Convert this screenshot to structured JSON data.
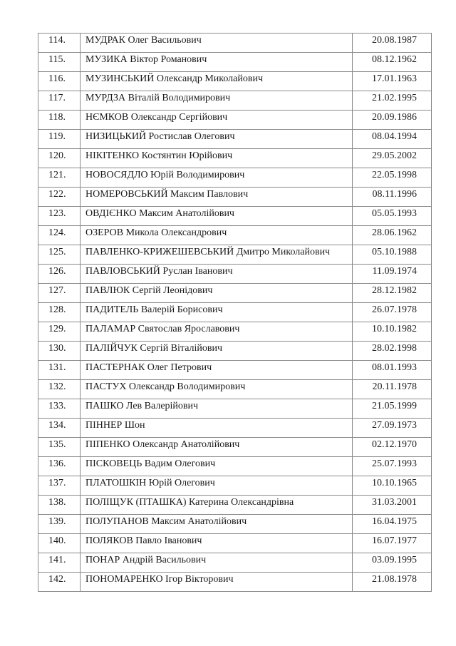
{
  "rows": [
    {
      "num": "114.",
      "name": "МУДРАК Олег Васильович",
      "date": "20.08.1987"
    },
    {
      "num": "115.",
      "name": "МУЗИКА Віктор Романович",
      "date": "08.12.1962"
    },
    {
      "num": "116.",
      "name": "МУЗИНСЬКИЙ Олександр Миколайович",
      "date": "17.01.1963"
    },
    {
      "num": "117.",
      "name": "МУРДЗА Віталій Володимирович",
      "date": "21.02.1995"
    },
    {
      "num": "118.",
      "name": "НЄМКОВ Олександр Сергійович",
      "date": "20.09.1986"
    },
    {
      "num": "119.",
      "name": "НИЗИЦЬКИЙ Ростислав Олегович",
      "date": "08.04.1994"
    },
    {
      "num": "120.",
      "name": "НІКІТЕНКО Костянтин Юрійович",
      "date": "29.05.2002"
    },
    {
      "num": "121.",
      "name": "НОВОСЯДЛО Юрій Володимирович",
      "date": "22.05.1998"
    },
    {
      "num": "122.",
      "name": "НОМЕРОВСЬКИЙ Максим Павлович",
      "date": "08.11.1996"
    },
    {
      "num": "123.",
      "name": "ОВДІЄНКО Максим Анатолійович",
      "date": "05.05.1993"
    },
    {
      "num": "124.",
      "name": "ОЗЕРОВ Микола Олександрович",
      "date": "28.06.1962"
    },
    {
      "num": "125.",
      "name": "ПАВЛЕНКО-КРИЖЕШЕВСЬКИЙ Дмитро Миколайович",
      "date": "05.10.1988"
    },
    {
      "num": "126.",
      "name": "ПАВЛОВСЬКИЙ Руслан Іванович",
      "date": "11.09.1974"
    },
    {
      "num": "127.",
      "name": "ПАВЛЮК Сергій Леонідович",
      "date": "28.12.1982"
    },
    {
      "num": "128.",
      "name": "ПАДИТЕЛЬ Валерій Борисович",
      "date": "26.07.1978"
    },
    {
      "num": "129.",
      "name": "ПАЛАМАР Святослав Ярославович",
      "date": "10.10.1982"
    },
    {
      "num": "130.",
      "name": "ПАЛІЙЧУК Сергій Віталійович",
      "date": "28.02.1998"
    },
    {
      "num": "131.",
      "name": "ПАСТЕРНАК Олег Петрович",
      "date": "08.01.1993"
    },
    {
      "num": "132.",
      "name": "ПАСТУХ Олександр Володимирович",
      "date": "20.11.1978"
    },
    {
      "num": "133.",
      "name": "ПАШКО Лев Валерійович",
      "date": "21.05.1999"
    },
    {
      "num": "134.",
      "name": "ПІННЕР Шон",
      "date": "27.09.1973"
    },
    {
      "num": "135.",
      "name": "ПІПЕНКО Олександр Анатолійович",
      "date": "02.12.1970"
    },
    {
      "num": "136.",
      "name": "ПІСКОВЕЦЬ Вадим Олегович",
      "date": "25.07.1993"
    },
    {
      "num": "137.",
      "name": "ПЛАТОШКІН Юрій Олегович",
      "date": "10.10.1965"
    },
    {
      "num": "138.",
      "name": "ПОЛІЩУК (ПТАШКА) Катерина Олександрівна",
      "date": "31.03.2001"
    },
    {
      "num": "139.",
      "name": "ПОЛУПАНОВ Максим Анатолійович",
      "date": "16.04.1975"
    },
    {
      "num": "140.",
      "name": "ПОЛЯКОВ Павло Іванович",
      "date": "16.07.1977"
    },
    {
      "num": "141.",
      "name": "ПОНАР Андрій Васильович",
      "date": "03.09.1995"
    },
    {
      "num": "142.",
      "name": "ПОНОМАРЕНКО Ігор Вікторович",
      "date": "21.08.1978"
    }
  ]
}
